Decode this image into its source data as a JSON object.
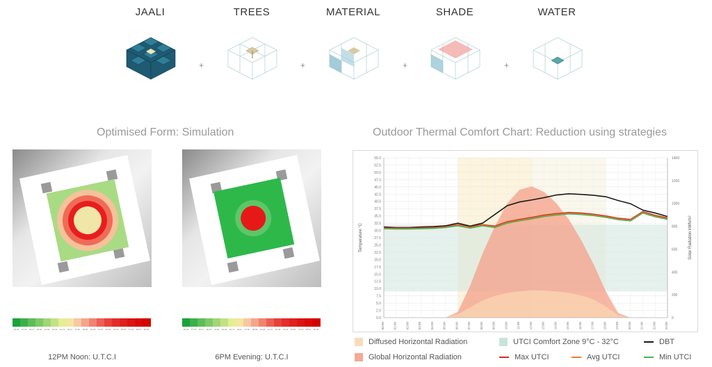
{
  "strategies": [
    {
      "label": "JAALI",
      "icon": "jaali-icon"
    },
    {
      "label": "TREES",
      "icon": "trees-icon"
    },
    {
      "label": "MATERIAL",
      "icon": "material-icon"
    },
    {
      "label": "SHADE",
      "icon": "shade-icon"
    },
    {
      "label": "WATER",
      "icon": "water-icon"
    }
  ],
  "plus_sign": "+",
  "simulation": {
    "title": "Optimised Form: Simulation",
    "panels": [
      {
        "caption": "12PM Noon: U.T.C.I",
        "ticks": [
          "26.39",
          "27.78",
          "29.17",
          "30.56",
          "31.94",
          "33.33",
          "34.72",
          "36.11",
          "37.50",
          "38.89",
          "40.28",
          "41.67",
          "43.06",
          "44.44",
          "45.83",
          "47.22",
          "48.61",
          "50.00"
        ]
      },
      {
        "caption": "6PM Evening: U.T.C.I",
        "ticks": [
          "26.39",
          "27.78",
          "29.17",
          "30.56",
          "31.94",
          "33.33",
          "34.72",
          "36.11",
          "37.50",
          "38.89",
          "40.28",
          "41.67",
          "43.06",
          "44.44",
          "45.83",
          "47.22",
          "48.61",
          "50.00"
        ]
      }
    ],
    "legend_colors": [
      "#1aa33a",
      "#3bb049",
      "#5cbd58",
      "#7ec967",
      "#a0d676",
      "#c2e285",
      "#e4ee94",
      "#f5e6a0",
      "#f7c9a3",
      "#f4a58d",
      "#f08270",
      "#ec5e55",
      "#e8403a",
      "#e32c2c",
      "#e01f1f",
      "#dd1212",
      "#d80808",
      "#d40000"
    ]
  },
  "chart_title": "Outdoor Thermal Comfort Chart: Reduction using strategies",
  "chart_data": {
    "type": "line",
    "x": [
      "00:00",
      "01:00",
      "02:00",
      "03:00",
      "04:00",
      "05:00",
      "06:00",
      "07:00",
      "08:00",
      "09:00",
      "10:00",
      "11:00",
      "12:00",
      "13:00",
      "14:00",
      "15:00",
      "16:00",
      "17:00",
      "18:00",
      "19:00",
      "20:00",
      "21:00",
      "22:00",
      "23:00"
    ],
    "ylabel": "Temperature °C",
    "ylabel_right": "Solar Radiation kWh/m²",
    "ylim": [
      0,
      55
    ],
    "yticks": [
      "0.0",
      "2.5",
      "5.0",
      "7.5",
      "10.0",
      "12.5",
      "15.0",
      "17.5",
      "20.0",
      "22.5",
      "25.0",
      "27.5",
      "30.0",
      "32.5",
      "35.0",
      "37.5",
      "40.0",
      "42.5",
      "45.0",
      "47.5",
      "50.0",
      "52.5",
      "55.0"
    ],
    "ylim_right": [
      0,
      1400
    ],
    "yticks_right": [
      "0",
      "200",
      "400",
      "600",
      "800",
      "1000",
      "1200",
      "1400"
    ],
    "comfort_zone": [
      9,
      32
    ],
    "series": [
      {
        "name": "DBT",
        "color": "#1a1a1a",
        "values": [
          31.2,
          31.0,
          31.0,
          31.2,
          31.3,
          31.6,
          32.5,
          31.5,
          32.5,
          35.5,
          38.5,
          39.8,
          40.5,
          41.3,
          42.2,
          42.6,
          42.4,
          42.1,
          41.6,
          40.3,
          39.2,
          37.0,
          36.0,
          34.8
        ]
      },
      {
        "name": "Max UTCI",
        "color": "#d62d20",
        "values": [
          30.9,
          30.8,
          30.8,
          30.9,
          31.0,
          31.3,
          32.0,
          31.2,
          32.0,
          31.5,
          33.0,
          33.8,
          34.5,
          35.3,
          35.8,
          36.2,
          36.0,
          35.6,
          35.0,
          34.2,
          33.8,
          36.5,
          35.2,
          34.3
        ]
      },
      {
        "name": "Avg UTCI",
        "color": "#f07d2a",
        "values": [
          30.7,
          30.6,
          30.6,
          30.7,
          30.8,
          31.1,
          31.8,
          31.0,
          31.8,
          31.2,
          32.7,
          33.5,
          34.2,
          35.0,
          35.5,
          35.9,
          35.7,
          35.3,
          34.7,
          33.9,
          33.5,
          36.2,
          34.9,
          34.0
        ]
      },
      {
        "name": "Min UTCI",
        "color": "#4caf50",
        "values": [
          30.6,
          30.5,
          30.5,
          30.6,
          30.7,
          31.0,
          31.6,
          30.8,
          31.6,
          31.0,
          32.5,
          33.3,
          34.0,
          34.8,
          35.3,
          35.7,
          35.5,
          35.1,
          34.5,
          33.7,
          33.3,
          36.0,
          34.7,
          33.8
        ]
      }
    ],
    "areas": [
      {
        "name": "Global Horizontal Radiation",
        "color": "#f4a08a",
        "values": [
          0,
          0,
          0,
          0,
          0,
          0,
          50,
          280,
          560,
          800,
          1000,
          1120,
          1150,
          1100,
          1000,
          860,
          680,
          470,
          230,
          40,
          0,
          0,
          0,
          0
        ]
      },
      {
        "name": "Diffused Horizontal Radiation",
        "color": "#f9d7b3",
        "values": [
          0,
          0,
          0,
          0,
          0,
          0,
          30,
          90,
          150,
          190,
          215,
          230,
          240,
          238,
          230,
          215,
          195,
          160,
          100,
          20,
          0,
          0,
          0,
          0
        ]
      }
    ],
    "daylight_band": [
      6,
      12
    ],
    "legend": [
      {
        "name": "Diffused Horizontal Radiation",
        "kind": "box",
        "color": "#f9dcbb"
      },
      {
        "name": "UTCI Comfort Zone 9°C - 32°C",
        "kind": "box",
        "color": "#c9e3dc"
      },
      {
        "name": "DBT",
        "kind": "line",
        "color": "#1a1a1a"
      },
      {
        "name": "Global Horizontal Radiation",
        "kind": "box",
        "color": "#f4aa96"
      },
      {
        "name": "Max UTCI",
        "kind": "line",
        "color": "#d62d20"
      },
      {
        "name": "Avg UTCI",
        "kind": "line",
        "color": "#f07d2a"
      },
      {
        "name": "Min UTCI",
        "kind": "line",
        "color": "#4caf50"
      }
    ]
  }
}
